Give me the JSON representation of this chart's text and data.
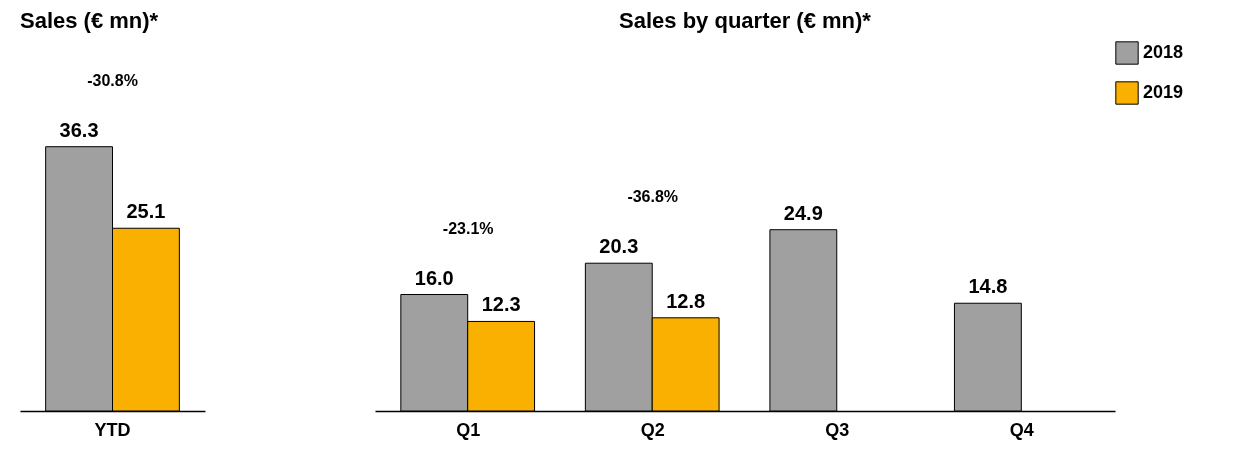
{
  "chart_data": [
    {
      "type": "bar",
      "title": "Sales (€ mn)*",
      "categories": [
        "YTD"
      ],
      "series": [
        {
          "name": "2018",
          "color": "#a0a0a0",
          "values": [
            36.3
          ],
          "value_labels": [
            "36.3"
          ]
        },
        {
          "name": "2019",
          "color": "#f9b000",
          "values": [
            25.1
          ],
          "value_labels": [
            "25.1"
          ]
        }
      ],
      "legend": "top right",
      "annotations": [
        "-30.8%"
      ]
    },
    {
      "type": "bar",
      "title": "Sales by quarter (€ mn)*",
      "categories": [
        "Q1",
        "Q2",
        "Q3",
        "Q4"
      ],
      "series": [
        {
          "name": "2018",
          "color": "#a0a0a0",
          "values": [
            16.0,
            20.3,
            24.9,
            14.8
          ],
          "value_labels": [
            "16.0",
            "20.3",
            "24.9",
            "14.8"
          ]
        },
        {
          "name": "2019",
          "color": "#f9b000",
          "values": [
            12.3,
            12.8,
            null,
            null
          ],
          "value_labels": [
            "12.3",
            "12.8",
            null,
            null
          ]
        }
      ],
      "annotations": [
        "-23.1%",
        "-36.8%"
      ]
    }
  ]
}
